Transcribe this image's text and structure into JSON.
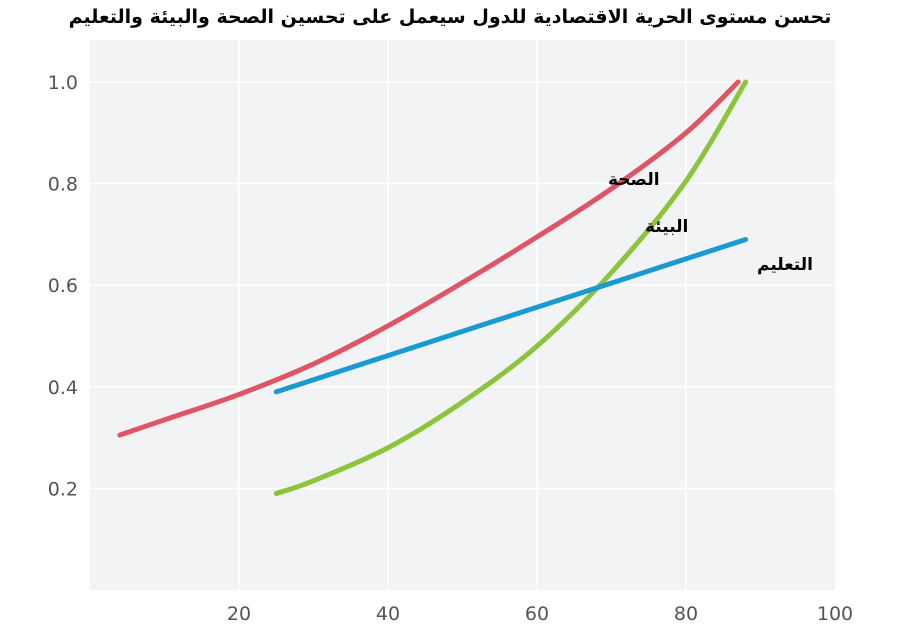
{
  "chart_data": {
    "type": "line",
    "title": "تحسن مستوى الحرية الاقتصادية للدول سيعمل على تحسين الصحة والبيئة والتعليم",
    "xlabel": "",
    "ylabel": "",
    "xlim": [
      0,
      100
    ],
    "ylim": [
      0,
      1.0
    ],
    "x_ticks": [
      20,
      40,
      60,
      80,
      100
    ],
    "y_ticks": [
      0.2,
      0.4,
      0.6,
      0.8,
      1.0
    ],
    "grid": true,
    "series": [
      {
        "name": "الصحة",
        "color": "#e05565",
        "x": [
          4,
          10,
          20,
          30,
          40,
          50,
          60,
          70,
          80,
          87
        ],
        "y": [
          0.305,
          0.335,
          0.385,
          0.445,
          0.52,
          0.605,
          0.695,
          0.79,
          0.9,
          1.0
        ]
      },
      {
        "name": "البيئة",
        "color": "#8cc43c",
        "x": [
          25,
          30,
          40,
          50,
          60,
          70,
          80,
          88
        ],
        "y": [
          0.19,
          0.215,
          0.28,
          0.37,
          0.48,
          0.625,
          0.805,
          1.0
        ]
      },
      {
        "name": "التعليم",
        "color": "#1a9ad3",
        "x": [
          25,
          88
        ],
        "y": [
          0.39,
          0.69
        ]
      }
    ]
  },
  "colors": {
    "plot_background": "#f2f3f5",
    "grid_line": "#ffffff",
    "tick_text": "#555555"
  }
}
